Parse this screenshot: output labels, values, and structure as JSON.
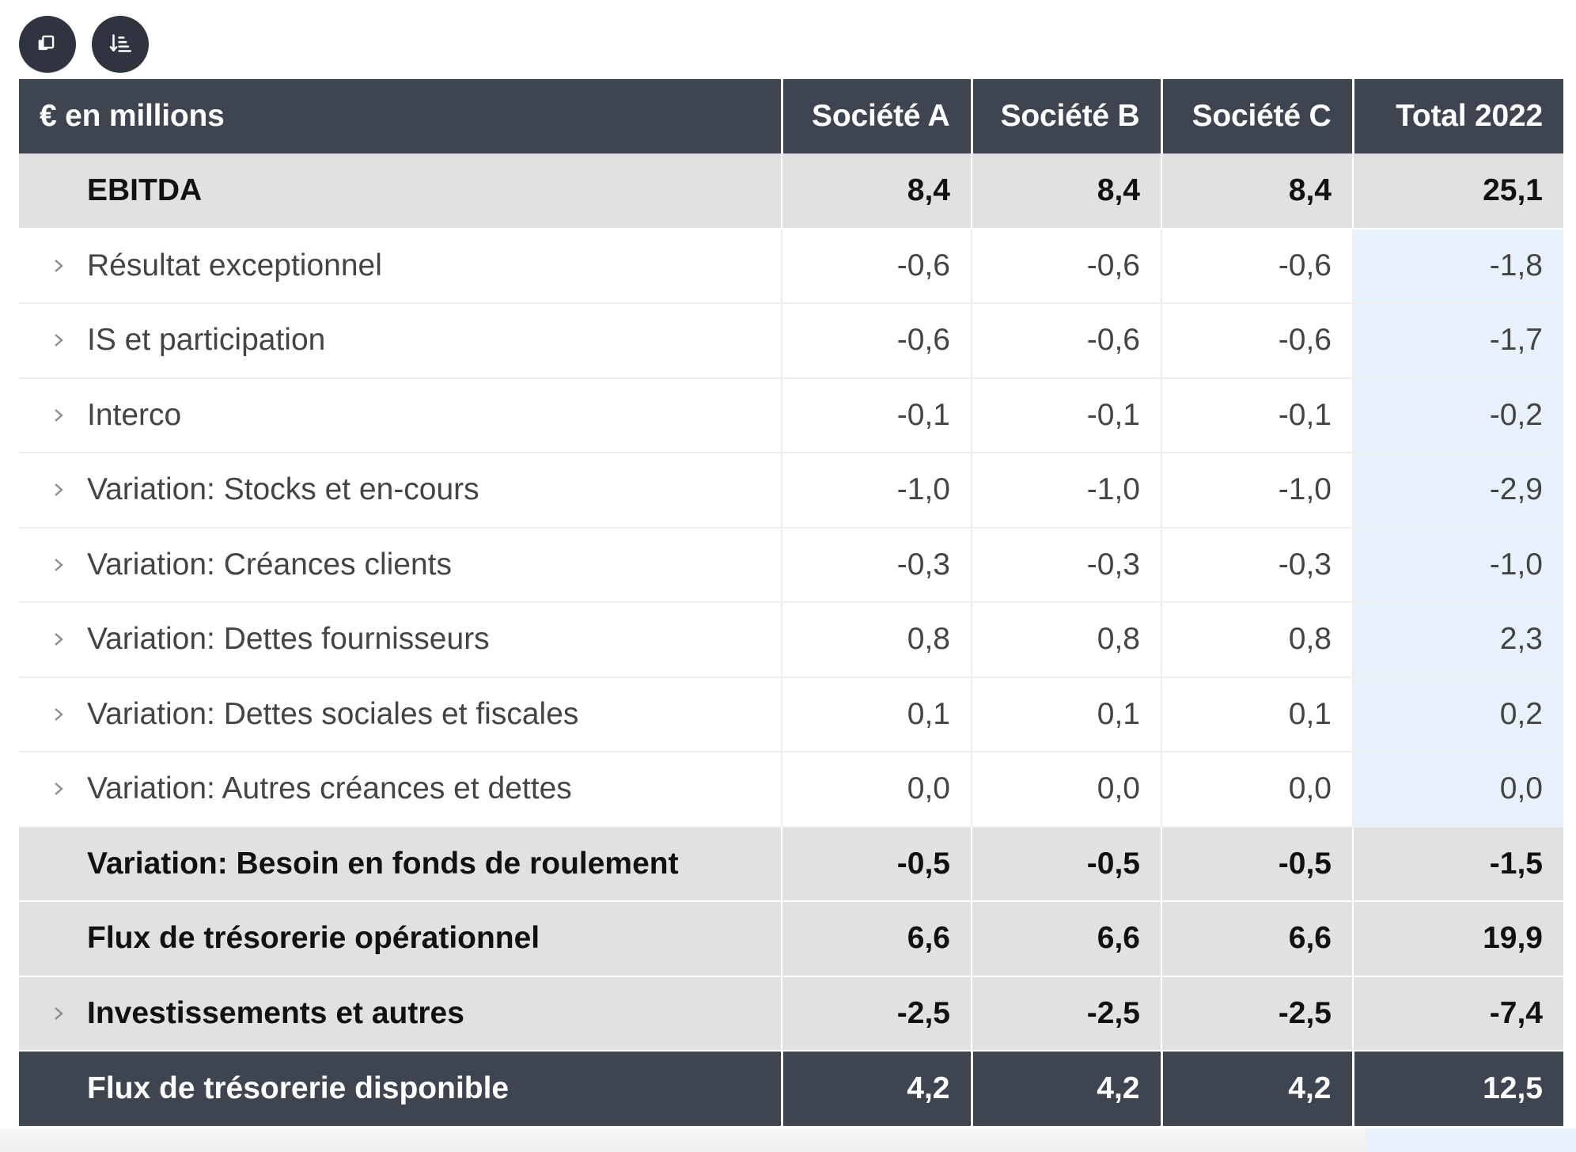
{
  "toolbar": {
    "buttons": [
      {
        "icon": "copy-icon"
      },
      {
        "icon": "sort-icon"
      }
    ]
  },
  "table": {
    "header": {
      "label": "€ en millions",
      "columns": [
        "Société A",
        "Société B",
        "Société C",
        "Total 2022"
      ]
    },
    "rows": [
      {
        "label": "EBITDA",
        "values": [
          "8,4",
          "8,4",
          "8,4",
          "25,1"
        ],
        "type": "subtotal",
        "expandable": false
      },
      {
        "label": "Résultat exceptionnel",
        "values": [
          "-0,6",
          "-0,6",
          "-0,6",
          "-1,8"
        ],
        "type": "detail",
        "expandable": true
      },
      {
        "label": "IS et participation",
        "values": [
          "-0,6",
          "-0,6",
          "-0,6",
          "-1,7"
        ],
        "type": "detail",
        "expandable": true
      },
      {
        "label": "Interco",
        "values": [
          "-0,1",
          "-0,1",
          "-0,1",
          "-0,2"
        ],
        "type": "detail",
        "expandable": true
      },
      {
        "label": "Variation: Stocks et en-cours",
        "values": [
          "-1,0",
          "-1,0",
          "-1,0",
          "-2,9"
        ],
        "type": "detail",
        "expandable": true
      },
      {
        "label": "Variation: Créances clients",
        "values": [
          "-0,3",
          "-0,3",
          "-0,3",
          "-1,0"
        ],
        "type": "detail",
        "expandable": true
      },
      {
        "label": "Variation: Dettes fournisseurs",
        "values": [
          "0,8",
          "0,8",
          "0,8",
          "2,3"
        ],
        "type": "detail",
        "expandable": true
      },
      {
        "label": "Variation: Dettes sociales et fiscales",
        "values": [
          "0,1",
          "0,1",
          "0,1",
          "0,2"
        ],
        "type": "detail",
        "expandable": true
      },
      {
        "label": "Variation: Autres créances et dettes",
        "values": [
          "0,0",
          "0,0",
          "0,0",
          "0,0"
        ],
        "type": "detail",
        "expandable": true
      },
      {
        "label": "Variation: Besoin en fonds de roulement",
        "values": [
          "-0,5",
          "-0,5",
          "-0,5",
          "-1,5"
        ],
        "type": "subtotal",
        "expandable": false
      },
      {
        "label": "Flux de trésorerie opérationnel",
        "values": [
          "6,6",
          "6,6",
          "6,6",
          "19,9"
        ],
        "type": "subtotal",
        "expandable": false
      },
      {
        "label": "Investissements et autres",
        "values": [
          "-2,5",
          "-2,5",
          "-2,5",
          "-7,4"
        ],
        "type": "subtotal",
        "expandable": true
      },
      {
        "label": "Flux de trésorerie disponible",
        "values": [
          "4,2",
          "4,2",
          "4,2",
          "12,5"
        ],
        "type": "final",
        "expandable": false
      }
    ]
  },
  "colors": {
    "header_bg": "#3f4451",
    "toolbar_button_bg": "#2f3440",
    "subtotal_bg": "#e1e1e1",
    "total_column_highlight": "#e8f0fb"
  }
}
